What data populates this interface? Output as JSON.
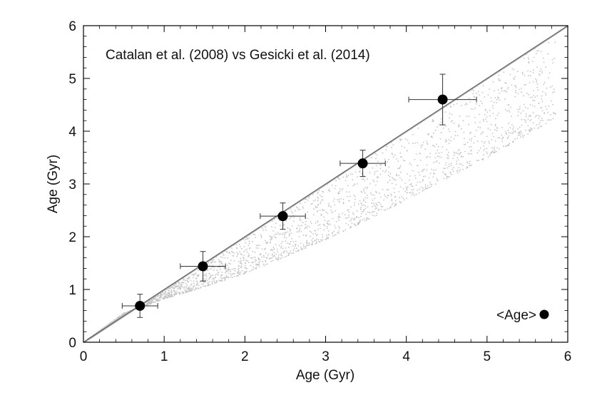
{
  "chart_data": {
    "type": "scatter",
    "annotation": "Catalan et al. (2008) vs Gesicki et al. (2014)",
    "xlabel": "Age (Gyr)",
    "ylabel": "Age (Gyr)",
    "xlim": [
      0,
      6
    ],
    "ylim": [
      0,
      6
    ],
    "xticks": [
      0,
      1,
      2,
      3,
      4,
      5,
      6
    ],
    "yticks": [
      0,
      1,
      2,
      3,
      4,
      5,
      6
    ],
    "legend": {
      "label": "<Age>",
      "position": "bottom-right"
    },
    "one_to_one_line": {
      "x": [
        0,
        6
      ],
      "y": [
        0,
        6
      ]
    },
    "scatter_cloud": {
      "color": "#c4c4c4",
      "upper_bound": {
        "x": [
          0,
          6
        ],
        "y": [
          0,
          6
        ]
      },
      "lower_bound": {
        "x": [
          0.05,
          0.5,
          1.0,
          1.5,
          2.0,
          2.5,
          3.0,
          3.5,
          4.0,
          4.5,
          5.0,
          5.4,
          5.85
        ],
        "y": [
          0.05,
          0.55,
          0.82,
          1.05,
          1.3,
          1.62,
          1.95,
          2.3,
          2.7,
          3.1,
          3.5,
          3.85,
          4.25
        ]
      }
    },
    "series": [
      {
        "name": "<Age>",
        "x": [
          0.7,
          1.48,
          2.47,
          3.46,
          4.45
        ],
        "y": [
          0.69,
          1.44,
          2.39,
          3.39,
          4.6
        ],
        "x_err": [
          0.22,
          0.28,
          0.28,
          0.28,
          0.42
        ],
        "y_err_low": [
          0.22,
          0.28,
          0.25,
          0.25,
          0.48
        ],
        "y_err_high": [
          0.22,
          0.28,
          0.25,
          0.25,
          0.48
        ]
      }
    ]
  }
}
